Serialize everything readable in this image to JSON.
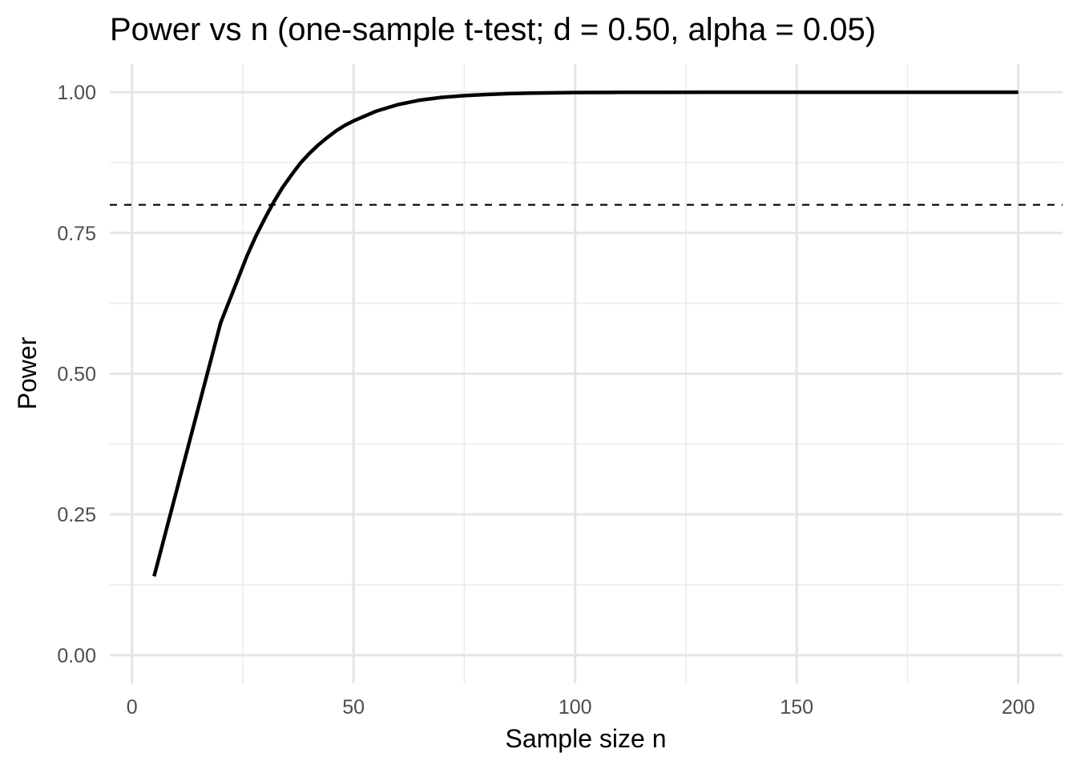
{
  "chart_data": {
    "type": "line",
    "title": "Power vs n (one-sample t-test; d = 0.50, alpha = 0.05)",
    "xlabel": "Sample size n",
    "ylabel": "Power",
    "xlim": [
      -5,
      210
    ],
    "ylim": [
      -0.05,
      1.05
    ],
    "x_ticks": [
      0,
      50,
      100,
      150,
      200
    ],
    "x_tick_labels": [
      "0",
      "50",
      "100",
      "150",
      "200"
    ],
    "x_minor_ticks": [
      25,
      75,
      125,
      175
    ],
    "y_ticks": [
      0,
      0.25,
      0.5,
      0.75,
      1
    ],
    "y_tick_labels": [
      "0.00",
      "0.25",
      "0.50",
      "0.75",
      "1.00"
    ],
    "y_minor_ticks": [
      0.125,
      0.375,
      0.625,
      0.875
    ],
    "grid": true,
    "reference_line": {
      "y": 0.8,
      "style": "dashed",
      "color": "#000000"
    },
    "series": [
      {
        "color": "#000000",
        "x": [
          5,
          6,
          7,
          8,
          9,
          10,
          11,
          12,
          13,
          14,
          15,
          16,
          17,
          18,
          19,
          20,
          22,
          24,
          26,
          28,
          30,
          32,
          34,
          36,
          38,
          40,
          42,
          44,
          46,
          48,
          50,
          55,
          60,
          65,
          70,
          75,
          80,
          85,
          90,
          95,
          100,
          110,
          120,
          130,
          140,
          150,
          160,
          170,
          180,
          190,
          200
        ],
        "y": [
          0.14,
          0.17,
          0.2,
          0.23,
          0.26,
          0.29,
          0.32,
          0.35,
          0.38,
          0.41,
          0.44,
          0.47,
          0.5,
          0.53,
          0.56,
          0.59,
          0.63,
          0.67,
          0.71,
          0.745,
          0.776,
          0.805,
          0.831,
          0.853,
          0.874,
          0.891,
          0.906,
          0.919,
          0.931,
          0.941,
          0.949,
          0.966,
          0.978,
          0.986,
          0.991,
          0.994,
          0.996,
          0.9975,
          0.9984,
          0.999,
          0.9994,
          0.9998,
          0.9999,
          1.0,
          1.0,
          1.0,
          1.0,
          1.0,
          1.0,
          1.0,
          1.0
        ]
      }
    ]
  }
}
